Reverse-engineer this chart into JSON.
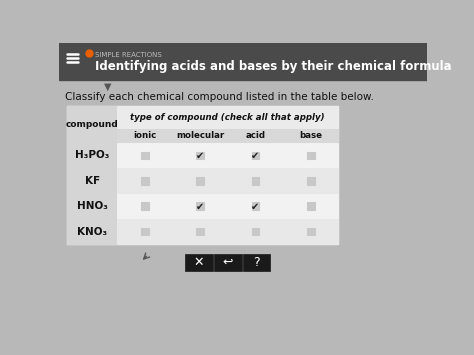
{
  "title_small": "SIMPLE REACTIONS",
  "title_large": "Identifying acids and bases by their chemical formula",
  "instruction": "Classify each chemical compound listed in the table below.",
  "header_col": "compound",
  "header_type": "type of compound (check all that apply)",
  "sub_headers": [
    "ionic",
    "molecular",
    "acid",
    "base"
  ],
  "compounds": [
    "H₃PO₃",
    "KF",
    "HNO₃",
    "KNO₃"
  ],
  "checkmarks": [
    [
      false,
      true,
      true,
      false
    ],
    [
      false,
      false,
      false,
      false
    ],
    [
      false,
      true,
      true,
      false
    ],
    [
      false,
      false,
      false,
      false
    ]
  ],
  "bg_color": "#b8b8b8",
  "header_bg": "#4a4a4a",
  "table_outer_bg": "#ffffff",
  "row_colors": [
    "#f2f2f2",
    "#e8e8e8"
  ],
  "header_row_color": "#e0e0e0",
  "sub_header_color": "#d8d8d8",
  "compound_col_color": "#d5d5d5",
  "button_bg": "#1a1a1a",
  "button_text": "#ffffff",
  "text_dark": "#111111",
  "text_white": "#ffffff",
  "text_gray": "#aaaaaa",
  "check_color": "#222222",
  "checkbox_color": "#c8c8c8",
  "checkbox_border": "#888888"
}
